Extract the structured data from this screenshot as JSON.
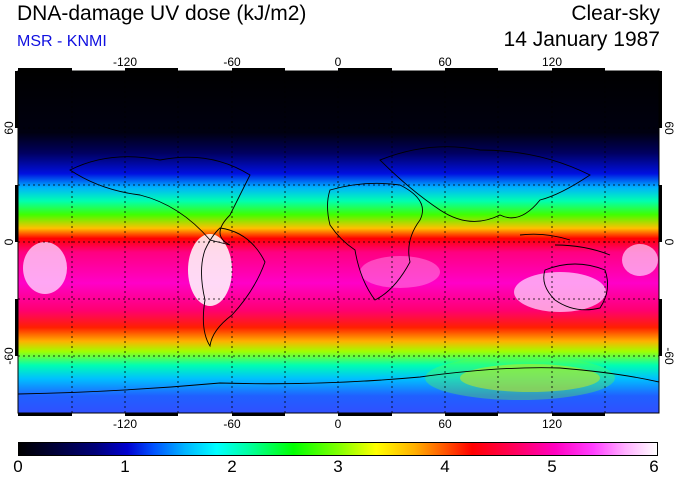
{
  "header": {
    "title": "DNA-damage UV dose (kJ/m2)",
    "subtitle": "MSR - KNMI",
    "condition": "Clear-sky",
    "date": "14 January 1987"
  },
  "map": {
    "lon_range": [
      -180,
      180
    ],
    "lat_range": [
      -90,
      90
    ],
    "lon_ticks": [
      -120,
      -60,
      0,
      60,
      120
    ],
    "lat_ticks": [
      60,
      0,
      -60
    ],
    "lon_tick_labels": [
      "-120",
      "-60",
      "0",
      "60",
      "120"
    ],
    "lat_tick_labels": [
      "60",
      "0",
      "-60"
    ],
    "grid": "dashed every 30 degrees"
  },
  "colorbar": {
    "labels": [
      "0",
      "1",
      "2",
      "3",
      "4",
      "5",
      "6"
    ],
    "min": 0,
    "max": 6,
    "colors": [
      "#000000",
      "#0000d0",
      "#00ffff",
      "#00ff00",
      "#ffff00",
      "#ff0000",
      "#ff00c0",
      "#ffffff"
    ]
  }
}
